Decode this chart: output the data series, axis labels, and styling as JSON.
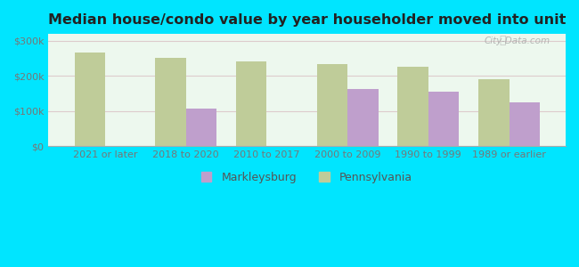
{
  "title": "Median house/condo value by year householder moved into unit",
  "categories": [
    "2021 or later",
    "2018 to 2020",
    "2010 to 2017",
    "2000 to 2009",
    "1990 to 1999",
    "1989 or earlier"
  ],
  "markleysburg": [
    null,
    107000,
    null,
    162000,
    155000,
    125000
  ],
  "pennsylvania": [
    268000,
    252000,
    242000,
    233000,
    226000,
    190000
  ],
  "markleysburg_color": "#bf9fcc",
  "pennsylvania_color": "#bfcc99",
  "background_top": "#edf8ee",
  "background_bottom": "#d8edd8",
  "outer_background": "#00e5ff",
  "ylim": [
    0,
    320000
  ],
  "yticks": [
    0,
    100000,
    200000,
    300000
  ],
  "ytick_labels": [
    "$0",
    "$100k",
    "$200k",
    "$300k"
  ],
  "legend_markleysburg": "Markleysburg",
  "legend_pennsylvania": "Pennsylvania",
  "watermark": "City-Data.com",
  "bar_width": 0.38
}
